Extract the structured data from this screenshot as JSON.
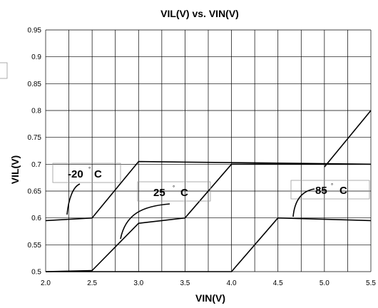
{
  "chart_data": {
    "type": "line",
    "title": "VIL(V) vs. VIN(V)",
    "xlabel": "VIN(V)",
    "ylabel": "VIL(V)",
    "xlim": [
      2.0,
      5.5
    ],
    "ylim": [
      0.5,
      0.95
    ],
    "grid": true,
    "xticks": [
      "2.0",
      "2.5",
      "3.0",
      "3.5",
      "4.0",
      "4.5",
      "5.0",
      "5.5"
    ],
    "yticks": [
      "0.5",
      "0.55",
      "0.6",
      "0.65",
      "0.7",
      "0.75",
      "0.8",
      "0.85",
      "0.9",
      "0.95"
    ],
    "series": [
      {
        "name": "-20",
        "unit": "C",
        "points": [
          [
            2.0,
            0.595
          ],
          [
            2.5,
            0.6
          ],
          [
            3.0,
            0.705
          ],
          [
            5.5,
            0.7
          ]
        ]
      },
      {
        "name": "25",
        "unit": "C",
        "points": [
          [
            2.0,
            0.5
          ],
          [
            2.5,
            0.502
          ],
          [
            3.0,
            0.59
          ],
          [
            3.5,
            0.6
          ],
          [
            4.0,
            0.7
          ],
          [
            5.5,
            0.7
          ]
        ]
      },
      {
        "name": "85",
        "unit": "C",
        "points": [
          [
            2.0,
            0.5
          ],
          [
            4.0,
            0.5
          ],
          [
            4.5,
            0.6
          ],
          [
            5.5,
            0.595
          ]
        ]
      },
      {
        "name": "",
        "unit": "",
        "points": [
          [
            5.0,
            0.695
          ],
          [
            5.5,
            0.8
          ]
        ]
      }
    ]
  }
}
